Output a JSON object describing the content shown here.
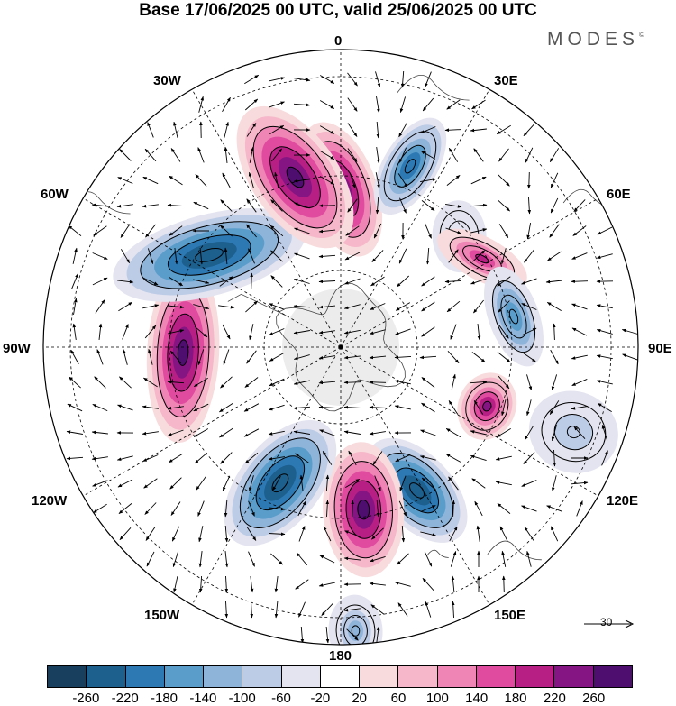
{
  "title": "Base 17/06/2025 00 UTC, valid 25/06/2025 00 UTC",
  "logo_text": "MODES",
  "logo_mark": "©",
  "longitude_labels": {
    "lon_0": "0",
    "lon_30e": "30E",
    "lon_60e": "60E",
    "lon_90e": "90E",
    "lon_120e": "120E",
    "lon_150e": "150E",
    "lon_180": "180",
    "lon_150w": "150W",
    "lon_120w": "120W",
    "lon_90w": "90W",
    "lon_60w": "60W",
    "lon_30w": "30W"
  },
  "reference_vector": "30",
  "colorbar": {
    "colors": [
      "#183f5e",
      "#1d5f8d",
      "#2d79b4",
      "#5a9dcb",
      "#8fb4da",
      "#bccbe6",
      "#e4e4f0",
      "#ffffff",
      "#f8dbdc",
      "#f5b7c9",
      "#ee85b5",
      "#e04a9f",
      "#b71f85",
      "#841582",
      "#4e0e6f"
    ],
    "ticks": [
      "-260",
      "-220",
      "-180",
      "-140",
      "-100",
      "-60",
      "-20",
      "20",
      "60",
      "100",
      "140",
      "180",
      "220",
      "260"
    ]
  },
  "map_features": {
    "projection": "south polar stereographic",
    "anomaly_lobes": [
      {
        "bearing_deg": 0,
        "sign": "positive",
        "intensity": 260
      },
      {
        "bearing_deg": 21,
        "sign": "negative",
        "intensity": -220
      },
      {
        "bearing_deg": 47,
        "sign": "negative",
        "intensity": -60
      },
      {
        "bearing_deg": 58,
        "sign": "positive",
        "intensity": 180
      },
      {
        "bearing_deg": 80,
        "sign": "negative",
        "intensity": -180
      },
      {
        "bearing_deg": 112,
        "sign": "positive",
        "intensity": 220
      },
      {
        "bearing_deg": 152,
        "sign": "negative",
        "intensity": -260
      },
      {
        "bearing_deg": 172,
        "sign": "positive",
        "intensity": 260
      },
      {
        "bearing_deg": 177,
        "sign": "negative",
        "intensity": -140
      },
      {
        "bearing_deg": 204,
        "sign": "negative",
        "intensity": -260
      },
      {
        "bearing_deg": 268,
        "sign": "positive",
        "intensity": 260
      },
      {
        "bearing_deg": 305,
        "sign": "negative",
        "intensity": -260
      },
      {
        "bearing_deg": 345,
        "sign": "positive",
        "intensity": 260
      },
      {
        "bearing_deg": 110,
        "sign": "negative",
        "intensity": -100
      }
    ],
    "wind_vectors": "yes",
    "coastlines": "yes",
    "graticule": "dashed"
  }
}
